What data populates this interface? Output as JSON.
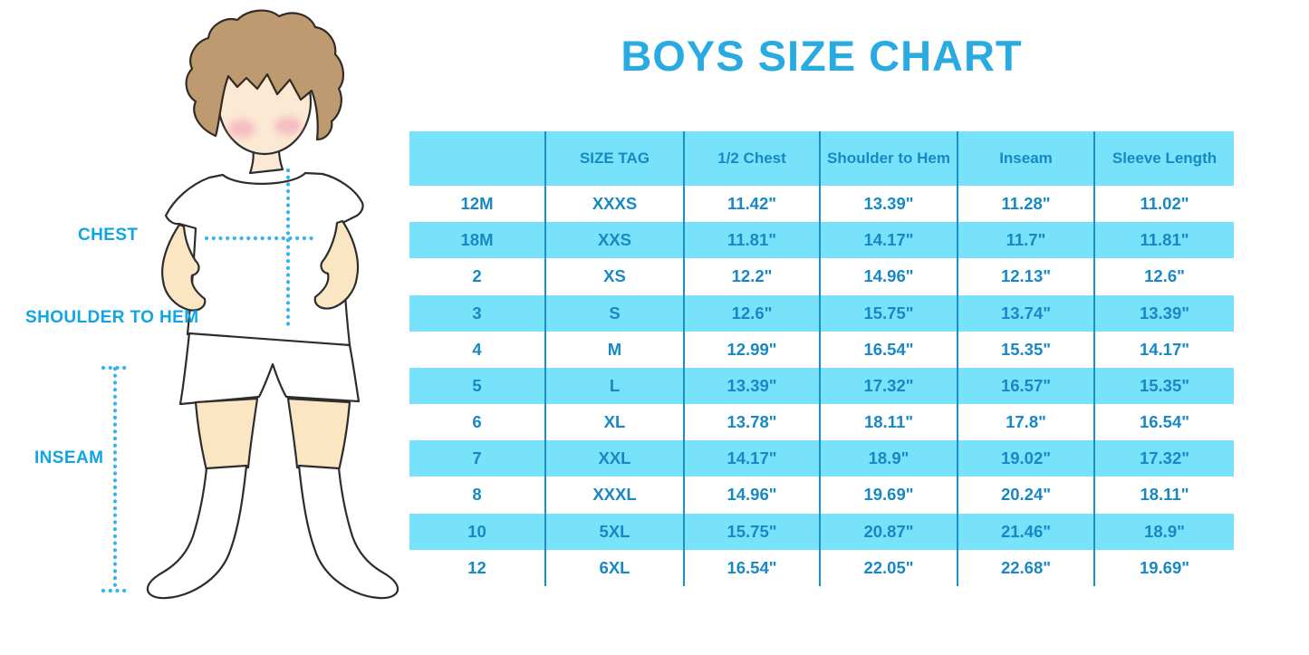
{
  "page": {
    "title": "BOYS SIZE CHART"
  },
  "figure": {
    "description": "cartoon boy with hands on hips wearing white t-shirt, white shorts and white knee socks, with dotted measurement guide lines",
    "labels": {
      "chest": "CHEST",
      "shoulder_to_hem": "SHOULDER TO HEM",
      "inseam": "INSEAM"
    }
  },
  "chart_data": {
    "type": "table",
    "title": "BOYS SIZE CHART",
    "units": "inches",
    "columns": [
      "",
      "SIZE TAG",
      "1/2 Chest",
      "Shoulder to Hem",
      "Inseam",
      "Sleeve Length"
    ],
    "rows": [
      [
        "12M",
        "XXXS",
        "11.42\"",
        "13.39\"",
        "11.28\"",
        "11.02\""
      ],
      [
        "18M",
        "XXS",
        "11.81\"",
        "14.17\"",
        "11.7\"",
        "11.81\""
      ],
      [
        "2",
        "XS",
        "12.2\"",
        "14.96\"",
        "12.13\"",
        "12.6\""
      ],
      [
        "3",
        "S",
        "12.6\"",
        "15.75\"",
        "13.74\"",
        "13.39\""
      ],
      [
        "4",
        "M",
        "12.99\"",
        "16.54\"",
        "15.35\"",
        "14.17\""
      ],
      [
        "5",
        "L",
        "13.39\"",
        "17.32\"",
        "16.57\"",
        "15.35\""
      ],
      [
        "6",
        "XL",
        "13.78\"",
        "18.11\"",
        "17.8\"",
        "16.54\""
      ],
      [
        "7",
        "XXL",
        "14.17\"",
        "18.9\"",
        "19.02\"",
        "17.32\""
      ],
      [
        "8",
        "XXXL",
        "14.96\"",
        "19.69\"",
        "20.24\"",
        "18.11\""
      ],
      [
        "10",
        "5XL",
        "15.75\"",
        "20.87\"",
        "21.46\"",
        "18.9\""
      ],
      [
        "12",
        "6XL",
        "16.54\"",
        "22.05\"",
        "22.68\"",
        "19.69\""
      ]
    ],
    "layout": {
      "header_background": "#78E2FB",
      "alternate_row_background": "#78E2FB",
      "base_row_background": "#FFFFFF",
      "column_divider_color": "#1B8FC8",
      "text_color": "#1888C4",
      "banded_row_indices": [
        1,
        3,
        5,
        7,
        9
      ]
    }
  },
  "colors": {
    "title_blue": "#29ABE2",
    "table_text": "#1888C4",
    "band_cyan": "#78E2FB",
    "divider": "#1B8FC8",
    "dotted_line": "#35B5EC",
    "label_blue": "#0FA5E5",
    "hair": "#BE9A70",
    "skin": "#FAE6C3"
  }
}
